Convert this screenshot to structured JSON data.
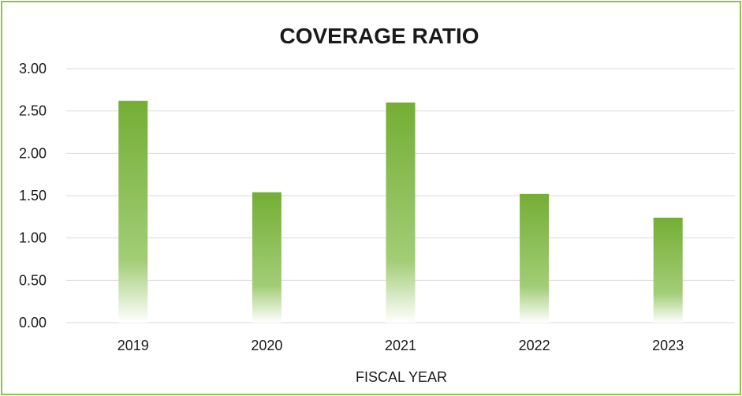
{
  "chart_data": {
    "type": "bar",
    "title": "COVERAGE RATIO",
    "xlabel": "FISCAL YEAR",
    "ylabel": "",
    "categories": [
      "2019",
      "2020",
      "2021",
      "2022",
      "2023"
    ],
    "values": [
      2.62,
      1.54,
      2.6,
      1.52,
      1.24
    ],
    "ylim": [
      0,
      3
    ],
    "yticks": [
      "0.00",
      "0.50",
      "1.00",
      "1.50",
      "2.00",
      "2.50",
      "3.00"
    ],
    "grid": true,
    "legend": "none",
    "colors": {
      "bar_top": "#74ae35",
      "bar_mid": "#a2cd76",
      "bar_bottom": "#ffffff",
      "border": "#8dc63f",
      "grid": "#d9d9d9"
    }
  }
}
